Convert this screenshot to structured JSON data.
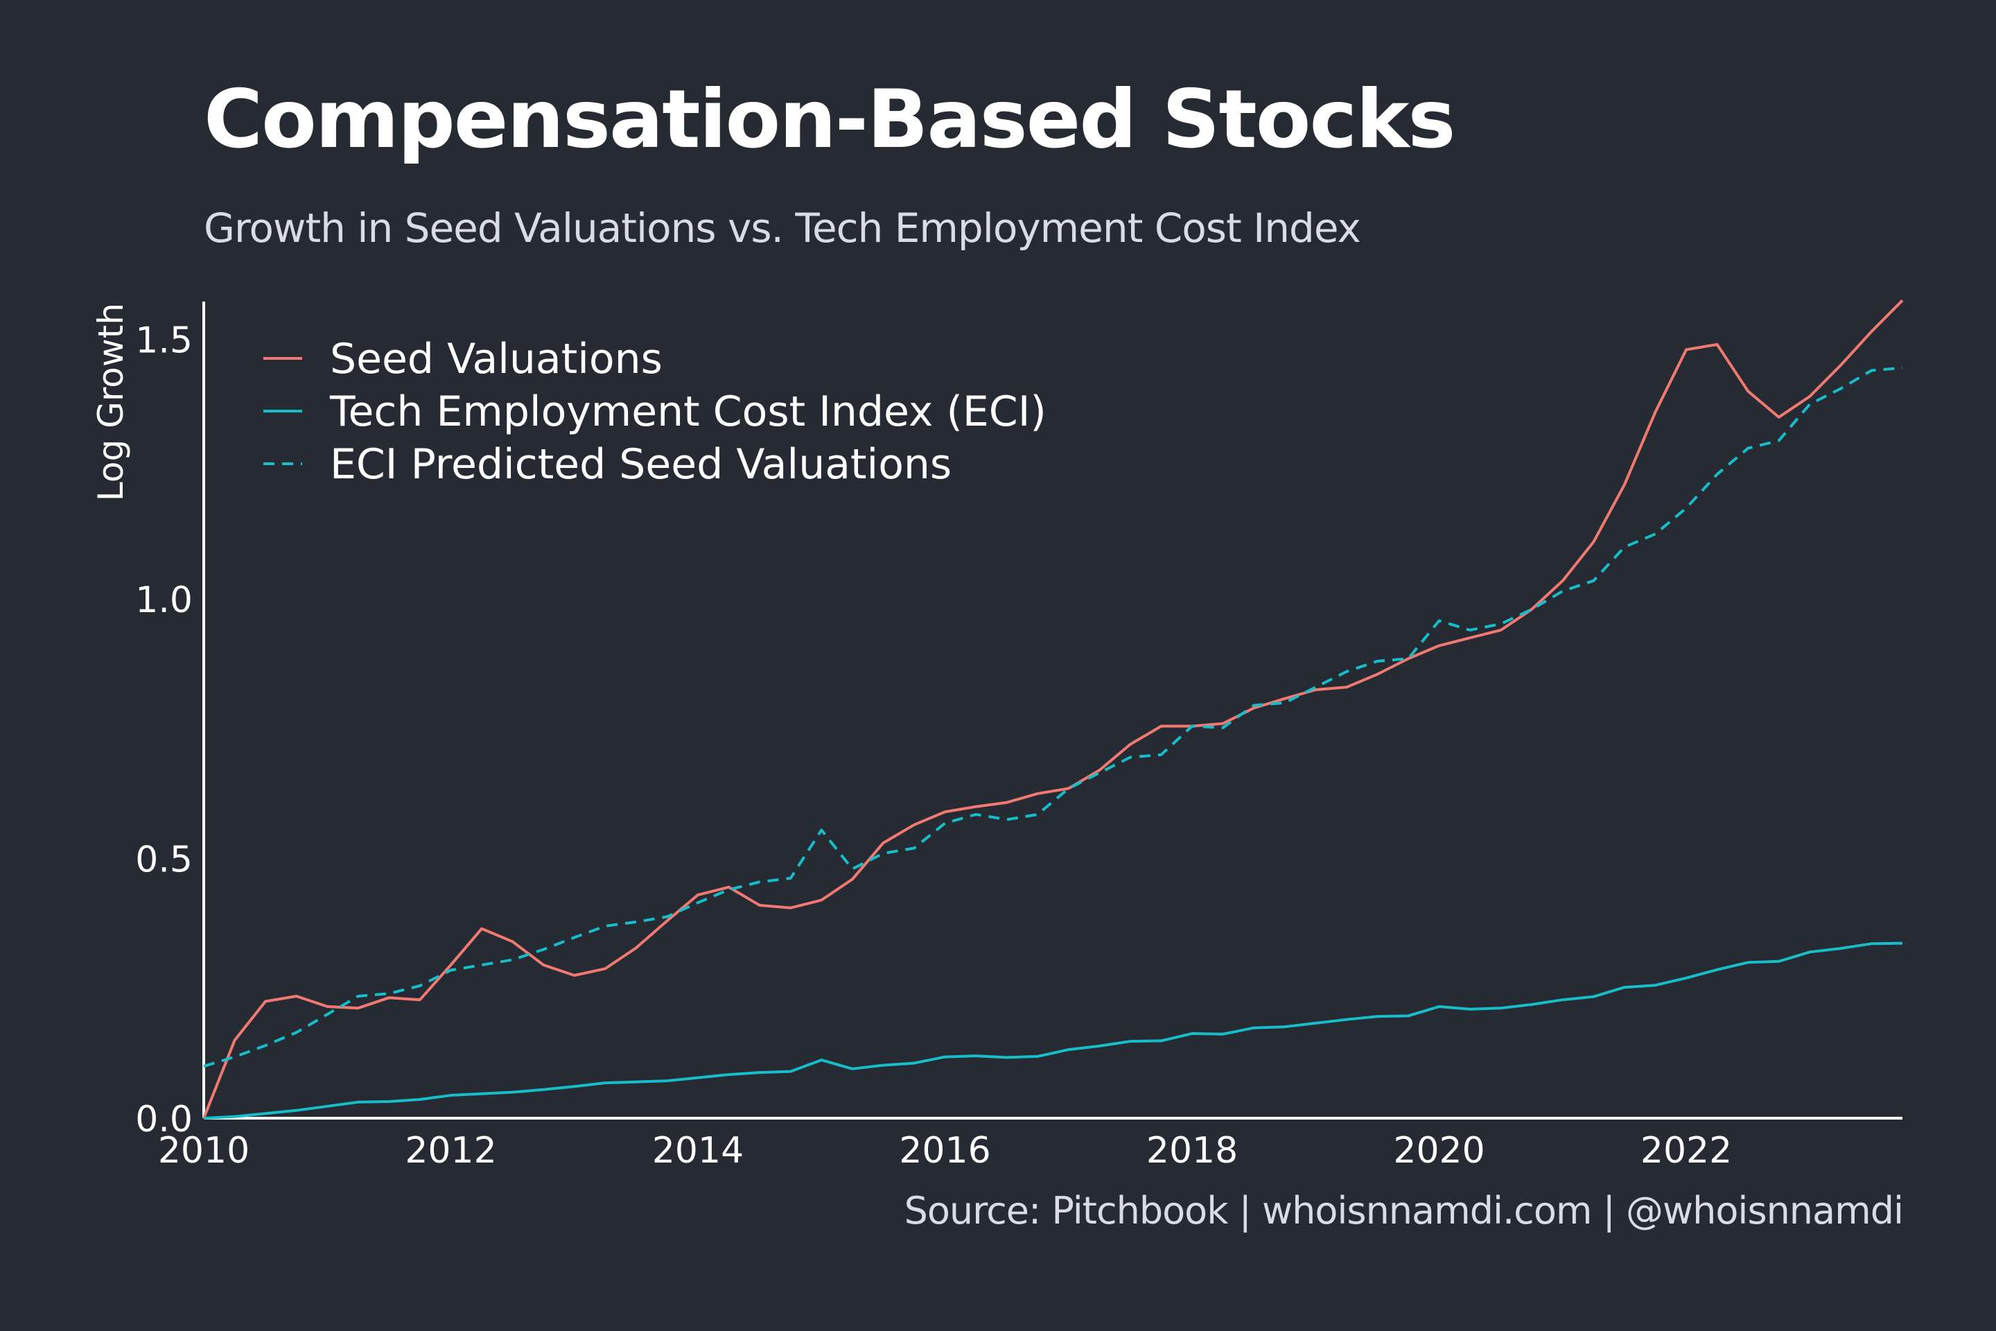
{
  "title": "Compensation-Based Stocks",
  "subtitle": "Growth in Seed Valuations vs. Tech Employment Cost Index",
  "source": "Source: Pitchbook | whoisnnamdi.com | @whoisnnamdi",
  "colors": {
    "background": "#252a33",
    "seed": "#f07a72",
    "eci": "#17bdc9",
    "axis": "#ffffff"
  },
  "chart_data": {
    "type": "line",
    "title": "Compensation-Based Stocks",
    "subtitle": "Growth in Seed Valuations vs. Tech Employment Cost Index",
    "xlabel": "",
    "ylabel": "Log Growth",
    "xlim": [
      2010,
      2023.75
    ],
    "ylim": [
      0,
      1.57
    ],
    "x_ticks": [
      2010,
      2012,
      2014,
      2016,
      2018,
      2020,
      2022
    ],
    "x_tick_labels": [
      "2010",
      "2012",
      "2014",
      "2016",
      "2018",
      "2020",
      "2022"
    ],
    "y_ticks": [
      0,
      0.5,
      1.0,
      1.5
    ],
    "y_tick_labels": [
      "0.0",
      "0.5",
      "1.0",
      "1.5"
    ],
    "grid": false,
    "legend_placement": "top-left",
    "x": [
      2010.0,
      2010.25,
      2010.5,
      2010.75,
      2011.0,
      2011.25,
      2011.5,
      2011.75,
      2012.0,
      2012.25,
      2012.5,
      2012.75,
      2013.0,
      2013.25,
      2013.5,
      2013.75,
      2014.0,
      2014.25,
      2014.5,
      2014.75,
      2015.0,
      2015.25,
      2015.5,
      2015.75,
      2016.0,
      2016.25,
      2016.5,
      2016.75,
      2017.0,
      2017.25,
      2017.5,
      2017.75,
      2018.0,
      2018.25,
      2018.5,
      2018.75,
      2019.0,
      2019.25,
      2019.5,
      2019.75,
      2020.0,
      2020.25,
      2020.5,
      2020.75,
      2021.0,
      2021.25,
      2021.5,
      2021.75,
      2022.0,
      2022.25,
      2022.5,
      2022.75,
      2023.0,
      2023.25,
      2023.5,
      2023.75
    ],
    "series": [
      {
        "name": "Seed Valuations",
        "color": "#f07a72",
        "style": "solid",
        "values": [
          0.0,
          0.15,
          0.225,
          0.235,
          0.215,
          0.212,
          0.232,
          0.228,
          0.295,
          0.365,
          0.34,
          0.295,
          0.275,
          0.288,
          0.328,
          0.38,
          0.43,
          0.445,
          0.41,
          0.405,
          0.42,
          0.46,
          0.53,
          0.565,
          0.59,
          0.6,
          0.608,
          0.625,
          0.635,
          0.67,
          0.72,
          0.755,
          0.755,
          0.76,
          0.79,
          0.808,
          0.825,
          0.83,
          0.855,
          0.885,
          0.91,
          0.925,
          0.94,
          0.98,
          1.035,
          1.11,
          1.22,
          1.36,
          1.48,
          1.49,
          1.4,
          1.35,
          1.39,
          1.45,
          1.515,
          1.575
        ]
      },
      {
        "name": "Tech Employment Cost Index (ECI)",
        "color": "#17bdc9",
        "style": "solid",
        "values": [
          0.0,
          0.003,
          0.009,
          0.015,
          0.023,
          0.031,
          0.032,
          0.036,
          0.044,
          0.047,
          0.05,
          0.055,
          0.061,
          0.068,
          0.07,
          0.072,
          0.078,
          0.084,
          0.088,
          0.09,
          0.112,
          0.095,
          0.102,
          0.106,
          0.118,
          0.12,
          0.117,
          0.119,
          0.132,
          0.139,
          0.148,
          0.149,
          0.163,
          0.162,
          0.174,
          0.176,
          0.183,
          0.19,
          0.196,
          0.197,
          0.215,
          0.21,
          0.212,
          0.219,
          0.228,
          0.234,
          0.252,
          0.256,
          0.27,
          0.286,
          0.3,
          0.302,
          0.32,
          0.327,
          0.336,
          0.337
        ]
      },
      {
        "name": "ECI Predicted Seed Valuations",
        "color": "#17bdc9",
        "style": "dashed",
        "values": [
          0.1,
          0.118,
          0.14,
          0.165,
          0.2,
          0.235,
          0.24,
          0.255,
          0.285,
          0.295,
          0.305,
          0.325,
          0.348,
          0.37,
          0.378,
          0.388,
          0.415,
          0.44,
          0.455,
          0.462,
          0.555,
          0.48,
          0.51,
          0.52,
          0.568,
          0.585,
          0.575,
          0.585,
          0.635,
          0.665,
          0.695,
          0.7,
          0.755,
          0.752,
          0.795,
          0.8,
          0.83,
          0.86,
          0.88,
          0.885,
          0.958,
          0.94,
          0.952,
          0.98,
          1.015,
          1.035,
          1.1,
          1.125,
          1.175,
          1.24,
          1.29,
          1.305,
          1.375,
          1.405,
          1.44,
          1.445
        ]
      }
    ]
  }
}
